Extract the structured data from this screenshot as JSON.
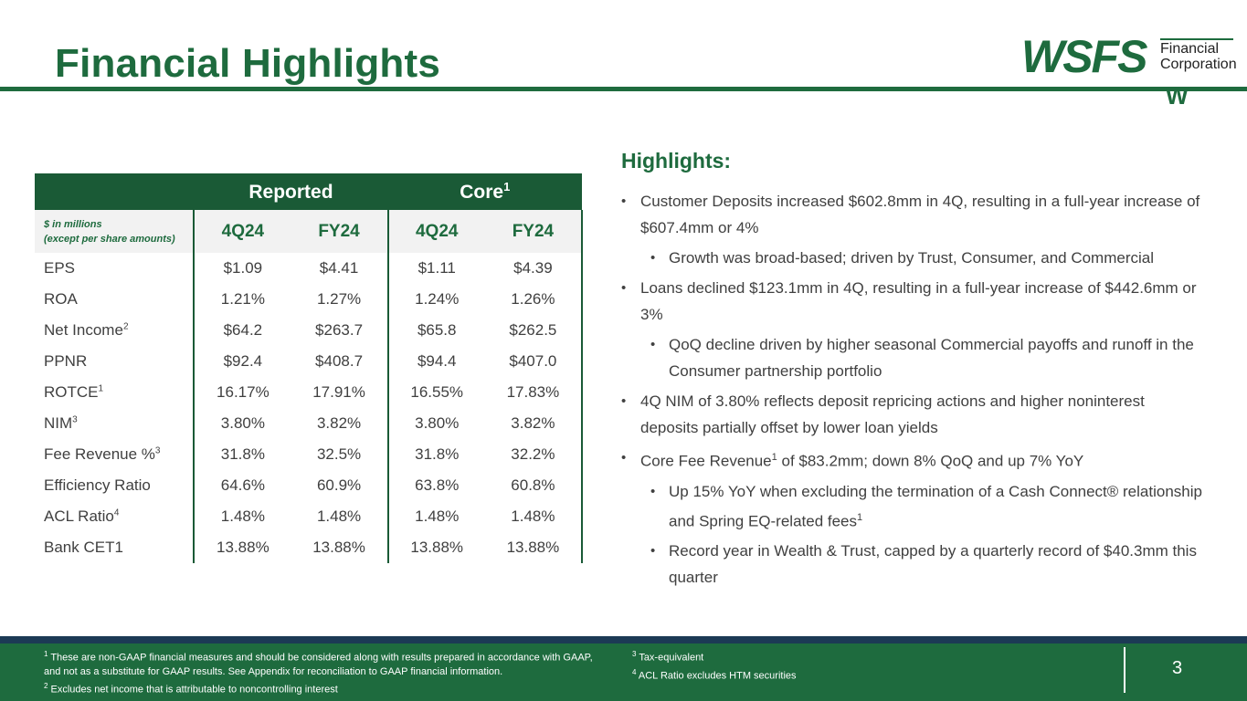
{
  "title": "Financial Highlights",
  "logo": {
    "word": "WSFS",
    "sub1": "Financial",
    "sub2": "Corporation",
    "mark": "W"
  },
  "table": {
    "group_headers": [
      {
        "label": "Reported",
        "sup": ""
      },
      {
        "label": "Core",
        "sup": "1"
      }
    ],
    "unit_line1": "$ in millions",
    "unit_line2": "(except per share amounts)",
    "columns": [
      "4Q24",
      "FY24",
      "4Q24",
      "FY24"
    ],
    "rows": [
      {
        "label": "EPS",
        "sup": "",
        "values": [
          "$1.09",
          "$4.41",
          "$1.11",
          "$4.39"
        ]
      },
      {
        "label": "ROA",
        "sup": "",
        "values": [
          "1.21%",
          "1.27%",
          "1.24%",
          "1.26%"
        ]
      },
      {
        "label": "Net Income",
        "sup": "2",
        "values": [
          "$64.2",
          "$263.7",
          "$65.8",
          "$262.5"
        ]
      },
      {
        "label": "PPNR",
        "sup": "",
        "values": [
          "$92.4",
          "$408.7",
          "$94.4",
          "$407.0"
        ]
      },
      {
        "label": "ROTCE",
        "sup": "1",
        "values": [
          "16.17%",
          "17.91%",
          "16.55%",
          "17.83%"
        ]
      },
      {
        "label": "NIM",
        "sup": "3",
        "values": [
          "3.80%",
          "3.82%",
          "3.80%",
          "3.82%"
        ]
      },
      {
        "label": "Fee Revenue %",
        "sup": "3",
        "values": [
          "31.8%",
          "32.5%",
          "31.8%",
          "32.2%"
        ]
      },
      {
        "label": "Efficiency Ratio",
        "sup": "",
        "values": [
          "64.6%",
          "60.9%",
          "63.8%",
          "60.8%"
        ]
      },
      {
        "label": "ACL Ratio",
        "sup": "4",
        "values": [
          "1.48%",
          "1.48%",
          "1.48%",
          "1.48%"
        ]
      },
      {
        "label": "Bank CET1",
        "sup": "",
        "values": [
          "13.88%",
          "13.88%",
          "13.88%",
          "13.88%"
        ]
      }
    ]
  },
  "highlights": {
    "title": "Highlights:",
    "bullets": [
      {
        "level": 1,
        "text": "Customer Deposits increased $602.8mm in 4Q, resulting in a full-year increase of $607.4mm or 4%"
      },
      {
        "level": 2,
        "text": "Growth was broad-based; driven by Trust, Consumer, and Commercial"
      },
      {
        "level": 1,
        "text": "Loans declined $123.1mm in 4Q, resulting in a full-year increase of $442.6mm or 3%"
      },
      {
        "level": 2,
        "text": "QoQ decline driven by higher seasonal Commercial payoffs and runoff in the Consumer partnership portfolio"
      },
      {
        "level": 1,
        "text": "4Q NIM of 3.80% reflects deposit repricing actions and higher noninterest deposits partially offset by lower loan yields"
      },
      {
        "level": 1,
        "text": "Core Fee Revenue",
        "sup": "1",
        "tail": " of $83.2mm; down 8% QoQ and up 7% YoY"
      },
      {
        "level": 2,
        "text": "Up 15% YoY when excluding the termination of a Cash Connect® relationship and Spring EQ-related fees",
        "sup": "1",
        "tail": ""
      },
      {
        "level": 2,
        "text": "Record year in Wealth & Trust, capped by a quarterly record of $40.3mm this quarter"
      }
    ]
  },
  "footnotes": {
    "fn1": "These are non-GAAP financial measures and should be considered along with results prepared in accordance with GAAP, and not as a substitute for GAAP results.  See Appendix for reconciliation to GAAP financial information.",
    "fn2": "Excludes net income that is attributable to noncontrolling interest",
    "fn3": "Tax-equivalent",
    "fn4": "ACL Ratio excludes HTM securities"
  },
  "page_number": "3",
  "colors": {
    "brand_green": "#1e6b3e",
    "header_green": "#1a5a36",
    "navy_band": "#1c3a55"
  }
}
